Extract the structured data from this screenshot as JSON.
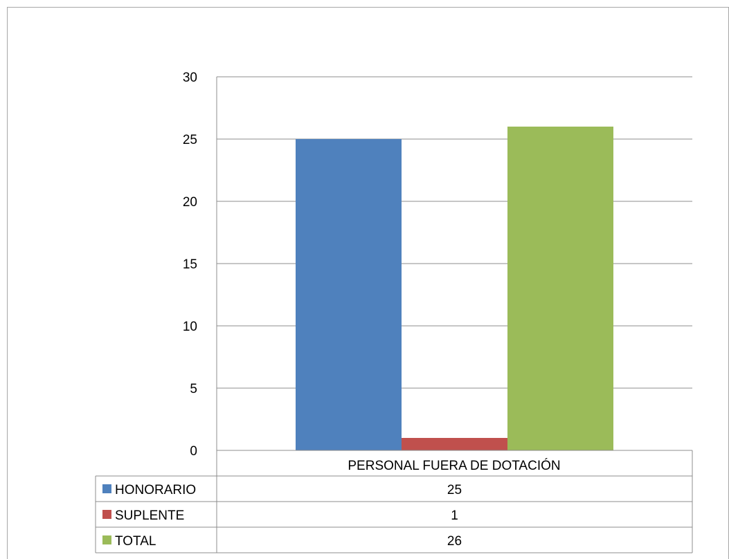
{
  "chart_data": {
    "type": "bar",
    "categories": [
      "PERSONAL FUERA DE DOTACIÓN"
    ],
    "series": [
      {
        "name": "HONORARIO",
        "values": [
          25
        ],
        "color": "#4f81bd"
      },
      {
        "name": "SUPLENTE",
        "values": [
          1
        ],
        "color": "#c0504d"
      },
      {
        "name": "TOTAL",
        "values": [
          26
        ],
        "color": "#9bbb59"
      }
    ],
    "ylim": [
      0,
      30
    ],
    "yticks": [
      0,
      5,
      10,
      15,
      20,
      25,
      30
    ],
    "grid": true,
    "legend": "data-table-bottom",
    "title": "",
    "xlabel": "",
    "ylabel": ""
  }
}
